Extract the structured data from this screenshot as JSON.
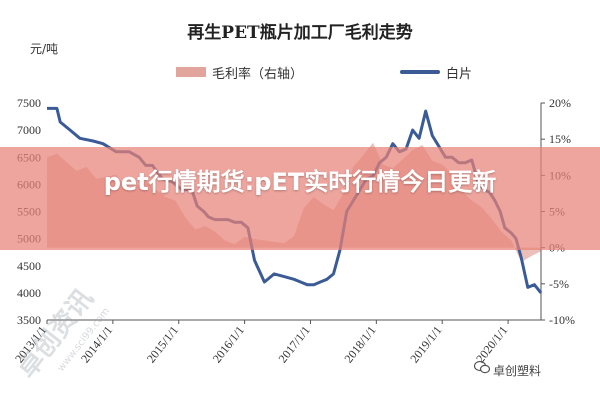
{
  "chart_data": {
    "type": "line",
    "title": "再生PET瓶片加工厂毛利走势",
    "left_axis_unit": "元/吨",
    "left_ylim": [
      3500,
      7500
    ],
    "left_ticks": [
      3500,
      4000,
      4500,
      5000,
      5500,
      6000,
      6500,
      7000,
      7500
    ],
    "right_ylim": [
      -10,
      20
    ],
    "right_ticks": [
      "-10%",
      "-5%",
      "0%",
      "5%",
      "10%",
      "15%",
      "20%"
    ],
    "right_tick_values": [
      -10,
      -5,
      0,
      5,
      10,
      15,
      20
    ],
    "x_tick_labels": [
      "2013/1/1",
      "2014/1/1",
      "2015/1/1",
      "2016/1/1",
      "2017/1/1",
      "2018/1/1",
      "2019/1/1",
      "2020/1/1"
    ],
    "x_tick_years": [
      2013,
      2014,
      2015,
      2016,
      2017,
      2018,
      2019,
      2020
    ],
    "xlim": [
      2013.0,
      2020.5
    ],
    "grid": false,
    "legend_position": "top",
    "series": [
      {
        "name": "毛利率（右轴）",
        "kind": "area",
        "axis": "right",
        "color": "#e2a59c",
        "x": [
          2013.0,
          2013.15,
          2013.3,
          2013.45,
          2013.6,
          2013.75,
          2013.9,
          2014.05,
          2014.2,
          2014.35,
          2014.5,
          2014.65,
          2014.8,
          2014.95,
          2015.1,
          2015.25,
          2015.4,
          2015.55,
          2015.7,
          2015.85,
          2016.0,
          2016.15,
          2016.3,
          2016.45,
          2016.6,
          2016.75,
          2016.9,
          2017.05,
          2017.2,
          2017.35,
          2017.5,
          2017.65,
          2017.8,
          2017.95,
          2018.1,
          2018.25,
          2018.4,
          2018.55,
          2018.7,
          2018.85,
          2019.0,
          2019.15,
          2019.3,
          2019.45,
          2019.6,
          2019.75,
          2019.9,
          2020.05,
          2020.2,
          2020.35,
          2020.5
        ],
        "values": [
          12.5,
          13.0,
          11.8,
          10.6,
          11.2,
          9.5,
          9.8,
          10.1,
          8.2,
          8.6,
          9.1,
          8.0,
          7.0,
          6.5,
          4.2,
          2.5,
          3.0,
          2.2,
          1.0,
          0.5,
          1.5,
          1.2,
          1.0,
          0.8,
          0.6,
          1.6,
          5.5,
          7.0,
          6.0,
          5.2,
          7.5,
          11.2,
          12.8,
          14.5,
          11.5,
          11.0,
          12.2,
          13.5,
          14.2,
          12.0,
          11.5,
          10.2,
          7.8,
          6.5,
          5.6,
          4.0,
          2.2,
          1.0,
          -2.0,
          -1.2,
          -0.5
        ]
      },
      {
        "name": "白片",
        "kind": "line",
        "axis": "left",
        "color": "#3b5b97",
        "x": [
          2013.0,
          2013.15,
          2013.2,
          2013.35,
          2013.5,
          2013.7,
          2013.85,
          2014.05,
          2014.25,
          2014.4,
          2014.5,
          2014.6,
          2014.75,
          2014.9,
          2015.05,
          2015.2,
          2015.28,
          2015.38,
          2015.45,
          2015.55,
          2015.65,
          2015.75,
          2015.85,
          2015.95,
          2016.05,
          2016.15,
          2016.3,
          2016.45,
          2016.6,
          2016.75,
          2016.85,
          2016.95,
          2017.05,
          2017.15,
          2017.25,
          2017.35,
          2017.45,
          2017.55,
          2017.65,
          2017.75,
          2017.85,
          2017.95,
          2018.05,
          2018.15,
          2018.25,
          2018.35,
          2018.45,
          2018.55,
          2018.65,
          2018.75,
          2018.85,
          2018.95,
          2019.05,
          2019.15,
          2019.25,
          2019.35,
          2019.45,
          2019.55,
          2019.65,
          2019.72,
          2019.8,
          2019.88,
          2019.95,
          2020.05,
          2020.12,
          2020.2,
          2020.3,
          2020.4,
          2020.5
        ],
        "values": [
          7400,
          7400,
          7150,
          7000,
          6850,
          6800,
          6750,
          6600,
          6600,
          6500,
          6350,
          6350,
          6100,
          6050,
          5900,
          5900,
          5600,
          5500,
          5400,
          5350,
          5350,
          5350,
          5300,
          5300,
          5200,
          4600,
          4200,
          4350,
          4300,
          4250,
          4200,
          4150,
          4150,
          4200,
          4250,
          4350,
          4800,
          5500,
          5700,
          5900,
          6100,
          6150,
          6400,
          6500,
          6750,
          6600,
          6650,
          7000,
          6850,
          7350,
          6900,
          6700,
          6500,
          6500,
          6400,
          6400,
          6450,
          6000,
          5900,
          5850,
          5700,
          5500,
          5200,
          5100,
          5000,
          4650,
          4100,
          4150,
          4000
        ]
      }
    ]
  },
  "overlay": {
    "headline": "pet行情期货:pET实时行情今日更新"
  },
  "watermark": {
    "text": "卓创塑料",
    "diagonal_text": "卓创资讯",
    "site_text": "www.sci99.com"
  }
}
